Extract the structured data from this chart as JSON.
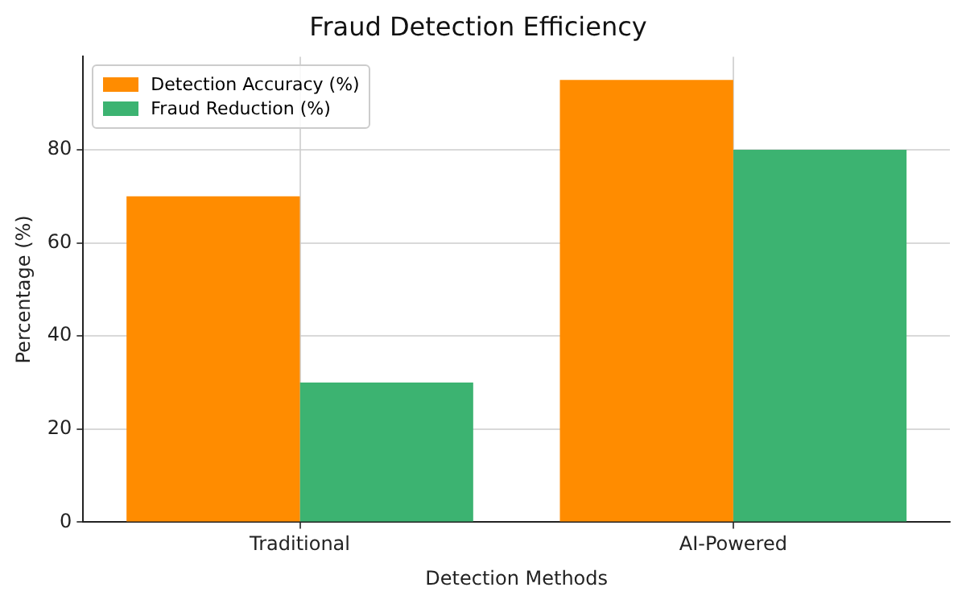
{
  "chart_data": {
    "type": "bar",
    "title": "Fraud Detection Efficiency",
    "xlabel": "Detection Methods",
    "ylabel": "Percentage (%)",
    "categories": [
      "Traditional",
      "AI-Powered"
    ],
    "series": [
      {
        "name": "Detection Accuracy (%)",
        "color": "#ff8c00",
        "values": [
          70,
          95
        ]
      },
      {
        "name": "Fraud Reduction (%)",
        "color": "#3cb371",
        "values": [
          30,
          80
        ]
      }
    ],
    "ylim": [
      0,
      100
    ],
    "yticks": [
      0,
      20,
      40,
      60,
      80
    ],
    "grid": true,
    "legend": "top left"
  }
}
